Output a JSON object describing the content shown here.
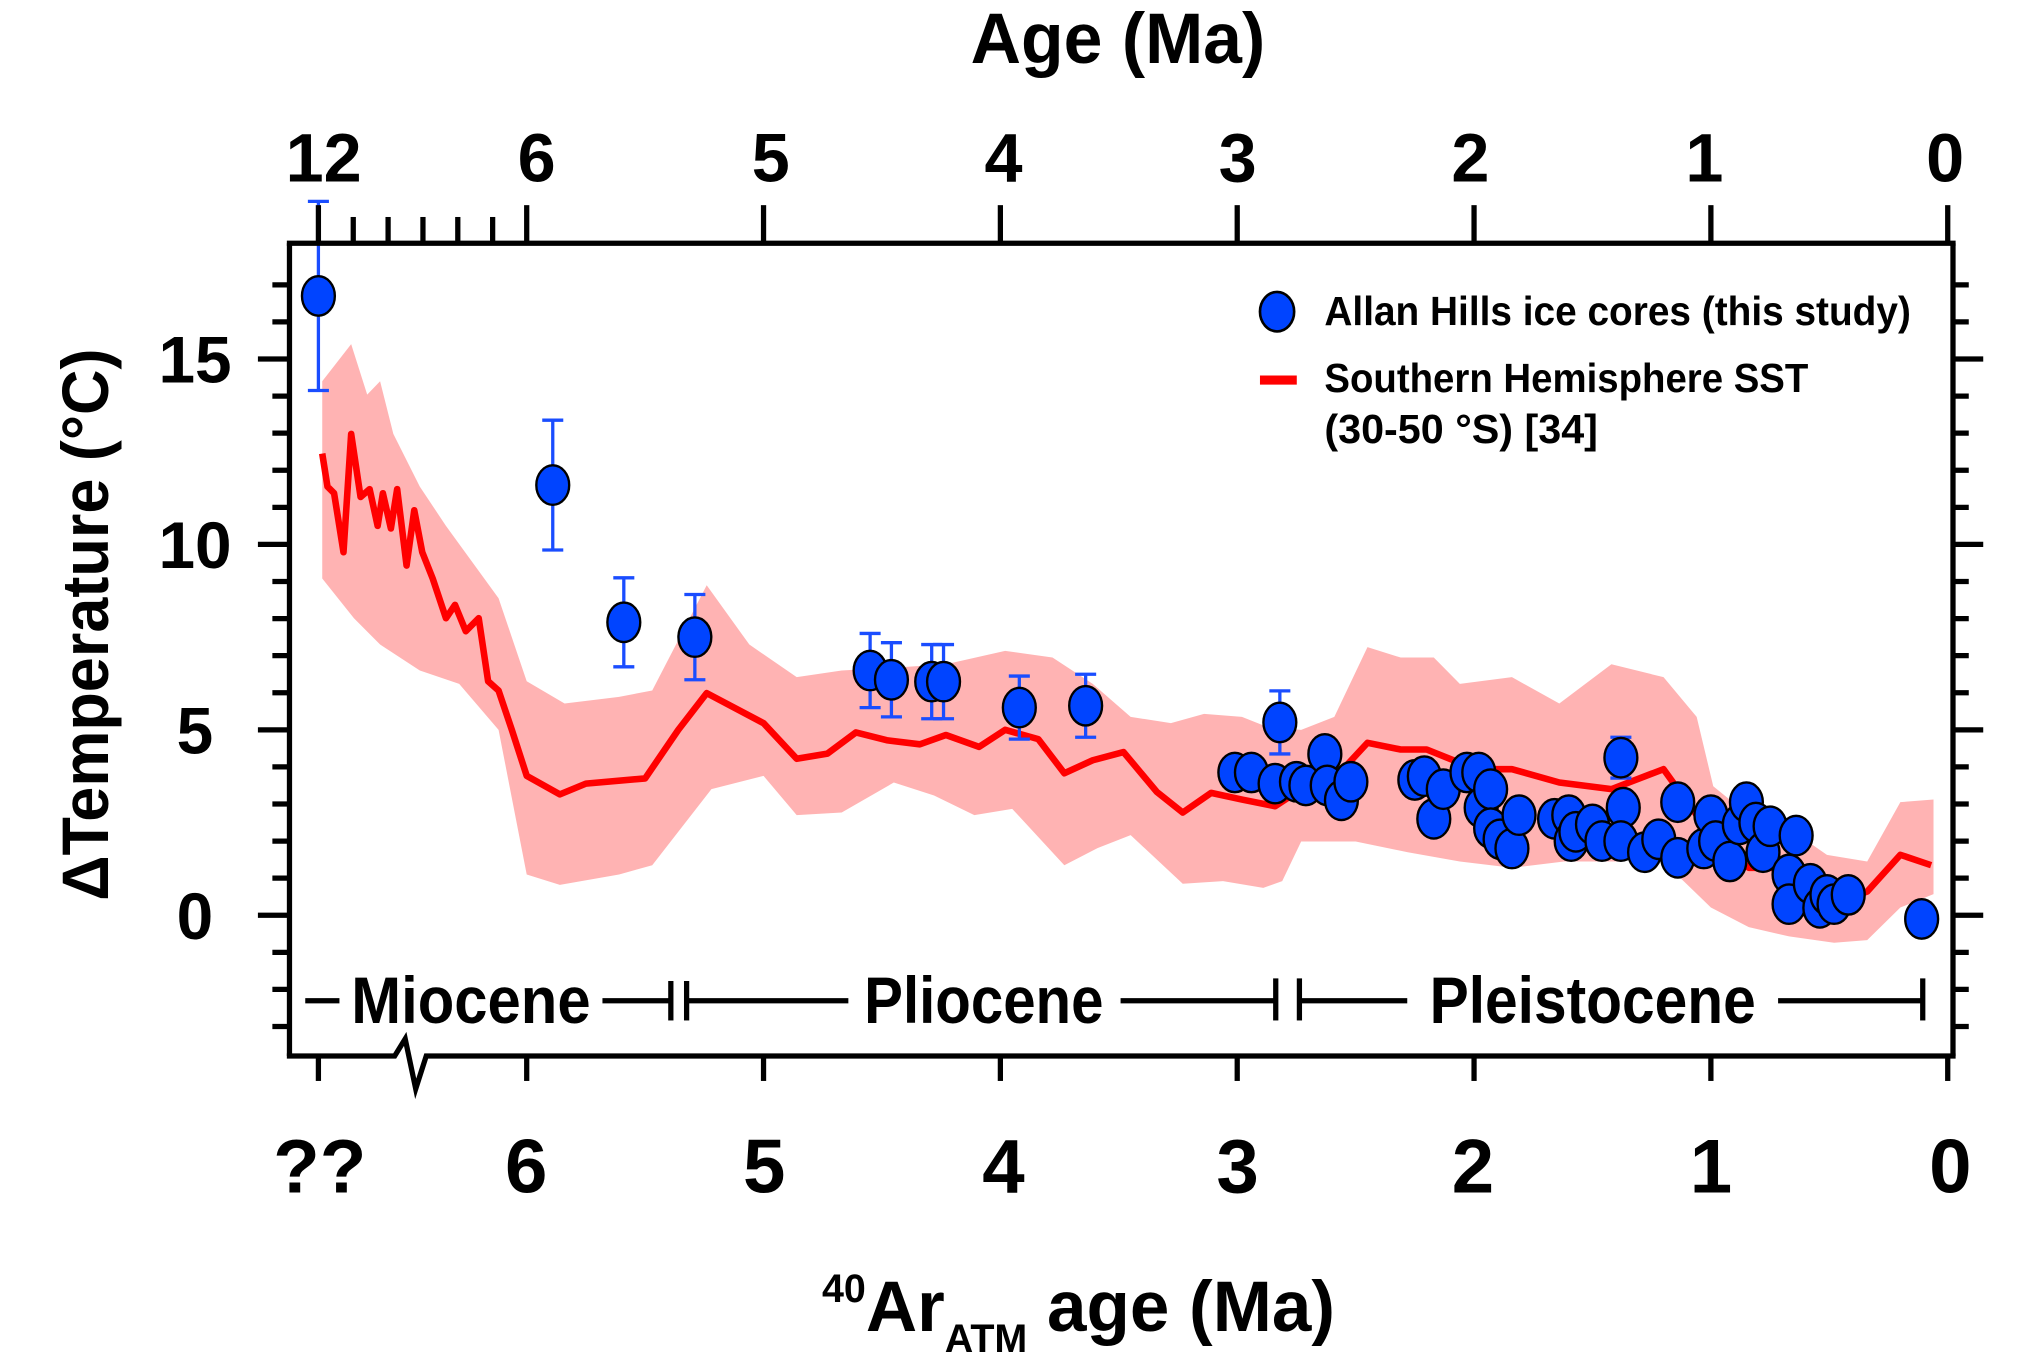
{
  "chart_data": {
    "type": "scatter",
    "top_axis": {
      "title": "Age (Ma)",
      "tick_labels": [
        "12",
        "6",
        "5",
        "4",
        "3",
        "2",
        "1",
        "0"
      ],
      "ticks": [
        12,
        6,
        5,
        4,
        3,
        2,
        1,
        0
      ],
      "minor_ticks": [
        11,
        10,
        9,
        8,
        7
      ]
    },
    "xlabel": {
      "superscript": "40",
      "main": "Ar",
      "subscript": "ATM",
      "rest": " age (Ma)"
    },
    "x_tick_labels": [
      "??",
      "6",
      "5",
      "4",
      "3",
      "2",
      "1",
      "0"
    ],
    "x_ticks": [
      12,
      6,
      5,
      4,
      3,
      2,
      1,
      0
    ],
    "x_axis_break": true,
    "ylabel": "ΔTemperature (°C)",
    "y_tick_labels": [
      "15",
      "10",
      "5",
      "0"
    ],
    "y_ticks": [
      15,
      10,
      5,
      0
    ],
    "ylim": [
      -3.8,
      18.1
    ],
    "xlim": [
      12.1,
      -0.05
    ],
    "grid": false,
    "legend": {
      "placement": "top-right",
      "entries": [
        {
          "label": "Allan Hills ice cores (this study)",
          "marker": "circle",
          "color": "#0044ff"
        },
        {
          "label": "Southern Hemisphere SST",
          "label2": "(30-50 °S) [34]",
          "marker": "line",
          "color": "#ff0000"
        }
      ]
    },
    "epochs": [
      {
        "name": "Miocene"
      },
      {
        "name": "Pliocene"
      },
      {
        "name": "Pleistocene"
      }
    ],
    "colors": {
      "points": "#0044ff",
      "errorbars": "#1a4dff",
      "sst_line": "#ff0000",
      "sst_band": "#ffb3b3"
    },
    "series": [
      {
        "name": "Allan Hills ice cores (this study)",
        "type": "scatter",
        "points": [
          {
            "x": 12.0,
            "y": 16.7,
            "err": 2.55
          },
          {
            "x": 5.89,
            "y": 11.6,
            "err": 1.75
          },
          {
            "x": 5.59,
            "y": 7.9,
            "err": 1.2
          },
          {
            "x": 5.29,
            "y": 7.5,
            "err": 1.15
          },
          {
            "x": 4.55,
            "y": 6.6,
            "err": 1.0
          },
          {
            "x": 4.46,
            "y": 6.35,
            "err": 1.0
          },
          {
            "x": 4.29,
            "y": 6.3,
            "err": 1.0
          },
          {
            "x": 4.24,
            "y": 6.3,
            "err": 1.0
          },
          {
            "x": 3.92,
            "y": 5.6,
            "err": 0.85
          },
          {
            "x": 3.64,
            "y": 5.65,
            "err": 0.85
          },
          {
            "x": 2.82,
            "y": 5.2,
            "err": 0.85
          },
          {
            "x": 3.01,
            "y": 3.85,
            "err": 0.4
          },
          {
            "x": 2.94,
            "y": 3.85,
            "err": 0.4
          },
          {
            "x": 2.84,
            "y": 3.55,
            "err": 0.4
          },
          {
            "x": 2.75,
            "y": 3.6,
            "err": 0.4
          },
          {
            "x": 2.71,
            "y": 3.5,
            "err": 0.4
          },
          {
            "x": 2.63,
            "y": 4.35,
            "err": 0.4
          },
          {
            "x": 2.62,
            "y": 3.5,
            "err": 0.4
          },
          {
            "x": 2.56,
            "y": 3.1,
            "err": 0.4
          },
          {
            "x": 2.52,
            "y": 3.6,
            "err": 0.4
          },
          {
            "x": 2.25,
            "y": 3.65,
            "err": 0.4
          },
          {
            "x": 2.21,
            "y": 3.75,
            "err": 0.4
          },
          {
            "x": 2.17,
            "y": 2.6,
            "err": 0
          },
          {
            "x": 2.13,
            "y": 3.4,
            "err": 0
          },
          {
            "x": 2.03,
            "y": 3.85,
            "err": 0.4
          },
          {
            "x": 1.98,
            "y": 3.85,
            "err": 0.4
          },
          {
            "x": 1.97,
            "y": 2.9,
            "err": 0
          },
          {
            "x": 1.93,
            "y": 3.4,
            "err": 0
          },
          {
            "x": 1.93,
            "y": 2.35,
            "err": 0
          },
          {
            "x": 1.89,
            "y": 2.05,
            "err": 0
          },
          {
            "x": 1.84,
            "y": 1.8,
            "err": 0
          },
          {
            "x": 1.81,
            "y": 2.7,
            "err": 0
          },
          {
            "x": 1.66,
            "y": 2.6,
            "err": 0
          },
          {
            "x": 1.6,
            "y": 2.7,
            "err": 0
          },
          {
            "x": 1.59,
            "y": 2.0,
            "err": 0
          },
          {
            "x": 1.57,
            "y": 2.25,
            "err": 0
          },
          {
            "x": 1.5,
            "y": 2.45,
            "err": 0
          },
          {
            "x": 1.46,
            "y": 2.0,
            "err": 0
          },
          {
            "x": 1.38,
            "y": 4.25,
            "err": 0.55
          },
          {
            "x": 1.37,
            "y": 2.9,
            "err": 0
          },
          {
            "x": 1.38,
            "y": 2.0,
            "err": 0
          },
          {
            "x": 1.28,
            "y": 1.7,
            "err": 0
          },
          {
            "x": 1.22,
            "y": 2.05,
            "err": 0
          },
          {
            "x": 1.14,
            "y": 3.05,
            "err": 0.3
          },
          {
            "x": 1.14,
            "y": 1.55,
            "err": 0
          },
          {
            "x": 1.03,
            "y": 1.8,
            "err": 0
          },
          {
            "x": 1.0,
            "y": 2.7,
            "err": 0
          },
          {
            "x": 0.98,
            "y": 2.0,
            "err": 0
          },
          {
            "x": 0.92,
            "y": 1.45,
            "err": 0
          },
          {
            "x": 0.88,
            "y": 2.45,
            "err": 0
          },
          {
            "x": 0.85,
            "y": 3.05,
            "err": 0.3
          },
          {
            "x": 0.81,
            "y": 2.5,
            "err": 0
          },
          {
            "x": 0.78,
            "y": 1.7,
            "err": 0
          },
          {
            "x": 0.75,
            "y": 2.4,
            "err": 0
          },
          {
            "x": 0.64,
            "y": 2.15,
            "err": 0
          },
          {
            "x": 0.67,
            "y": 1.1,
            "err": 0
          },
          {
            "x": 0.67,
            "y": 0.3,
            "err": 0
          },
          {
            "x": 0.58,
            "y": 0.85,
            "err": 0
          },
          {
            "x": 0.54,
            "y": 0.2,
            "err": 0
          },
          {
            "x": 0.51,
            "y": 0.55,
            "err": 0
          },
          {
            "x": 0.48,
            "y": 0.3,
            "err": 0
          },
          {
            "x": 0.42,
            "y": 0.55,
            "err": 0
          },
          {
            "x": 0.11,
            "y": -0.1,
            "err": 0
          }
        ]
      },
      {
        "name": "Southern Hemisphere SST (30-50 °S) [34]",
        "type": "line",
        "points": [
          [
            11.89,
            12.45
          ],
          [
            11.74,
            11.56
          ],
          [
            11.55,
            11.38
          ],
          [
            11.28,
            9.79
          ],
          [
            11.06,
            12.98
          ],
          [
            10.79,
            11.28
          ],
          [
            10.53,
            11.49
          ],
          [
            10.3,
            10.5
          ],
          [
            10.15,
            11.38
          ],
          [
            9.92,
            10.43
          ],
          [
            9.74,
            11.49
          ],
          [
            9.47,
            9.43
          ],
          [
            9.25,
            10.92
          ],
          [
            9.02,
            9.79
          ],
          [
            8.72,
            9.08
          ],
          [
            8.34,
            8.01
          ],
          [
            8.08,
            8.37
          ],
          [
            7.77,
            7.66
          ],
          [
            7.4,
            8.01
          ],
          [
            7.13,
            6.31
          ],
          [
            6.83,
            6.06
          ],
          [
            6.45,
            5.0
          ],
          [
            6.0,
            3.76
          ],
          [
            5.86,
            3.26
          ],
          [
            5.75,
            3.55
          ],
          [
            5.5,
            3.69
          ],
          [
            5.36,
            5.0
          ],
          [
            5.24,
            5.99
          ],
          [
            5.0,
            5.18
          ],
          [
            4.86,
            4.22
          ],
          [
            4.73,
            4.36
          ],
          [
            4.61,
            4.93
          ],
          [
            4.48,
            4.72
          ],
          [
            4.34,
            4.61
          ],
          [
            4.23,
            4.86
          ],
          [
            4.09,
            4.54
          ],
          [
            3.98,
            5.0
          ],
          [
            3.84,
            4.75
          ],
          [
            3.73,
            3.83
          ],
          [
            3.61,
            4.18
          ],
          [
            3.48,
            4.4
          ],
          [
            3.34,
            3.33
          ],
          [
            3.23,
            2.77
          ],
          [
            3.11,
            3.3
          ],
          [
            2.98,
            3.12
          ],
          [
            2.84,
            2.94
          ],
          [
            2.73,
            3.4
          ],
          [
            2.62,
            3.48
          ],
          [
            2.45,
            4.65
          ],
          [
            2.31,
            4.47
          ],
          [
            2.2,
            4.47
          ],
          [
            2.06,
            4.11
          ],
          [
            1.98,
            3.94
          ],
          [
            1.84,
            3.94
          ],
          [
            1.64,
            3.58
          ],
          [
            1.42,
            3.4
          ],
          [
            1.2,
            3.94
          ],
          [
            1.06,
            2.7
          ],
          [
            0.98,
            1.99
          ],
          [
            0.84,
            1.28
          ],
          [
            0.7,
            1.28
          ],
          [
            0.56,
            0.92
          ],
          [
            0.45,
            0.39
          ],
          [
            0.34,
            0.64
          ],
          [
            0.2,
            1.63
          ],
          [
            0.07,
            1.35
          ]
        ],
        "band_upper": [
          [
            11.89,
            14.4
          ],
          [
            11.06,
            15.4
          ],
          [
            10.6,
            14.04
          ],
          [
            10.23,
            14.4
          ],
          [
            9.85,
            12.98
          ],
          [
            9.09,
            11.56
          ],
          [
            8.34,
            10.5
          ],
          [
            6.83,
            8.55
          ],
          [
            6.0,
            6.31
          ],
          [
            5.84,
            5.71
          ],
          [
            5.61,
            5.89
          ],
          [
            5.47,
            6.06
          ],
          [
            5.24,
            8.9
          ],
          [
            5.06,
            7.3
          ],
          [
            4.86,
            6.42
          ],
          [
            4.67,
            6.6
          ],
          [
            4.39,
            6.7
          ],
          [
            4.23,
            6.77
          ],
          [
            3.98,
            7.13
          ],
          [
            3.78,
            6.95
          ],
          [
            3.61,
            6.24
          ],
          [
            3.45,
            5.35
          ],
          [
            3.28,
            5.18
          ],
          [
            3.14,
            5.43
          ],
          [
            2.98,
            5.35
          ],
          [
            2.87,
            5.07
          ],
          [
            2.73,
            5.0
          ],
          [
            2.59,
            5.35
          ],
          [
            2.45,
            7.23
          ],
          [
            2.31,
            6.95
          ],
          [
            2.17,
            6.95
          ],
          [
            2.06,
            6.24
          ],
          [
            1.84,
            6.42
          ],
          [
            1.64,
            5.71
          ],
          [
            1.42,
            6.77
          ],
          [
            1.2,
            6.42
          ],
          [
            1.06,
            5.35
          ],
          [
            0.99,
            3.48
          ],
          [
            0.84,
            2.7
          ],
          [
            0.67,
            2.34
          ],
          [
            0.51,
            1.63
          ],
          [
            0.34,
            1.45
          ],
          [
            0.2,
            3.05
          ],
          [
            0.06,
            3.12
          ]
        ],
        "band_lower": [
          [
            11.89,
            9.08
          ],
          [
            10.98,
            8.01
          ],
          [
            10.23,
            7.3
          ],
          [
            9.09,
            6.6
          ],
          [
            7.96,
            6.24
          ],
          [
            6.83,
            5.0
          ],
          [
            6.0,
            1.1
          ],
          [
            5.86,
            0.82
          ],
          [
            5.61,
            1.1
          ],
          [
            5.47,
            1.35
          ],
          [
            5.22,
            3.4
          ],
          [
            5.0,
            3.76
          ],
          [
            4.86,
            2.7
          ],
          [
            4.67,
            2.77
          ],
          [
            4.45,
            3.58
          ],
          [
            4.28,
            3.23
          ],
          [
            4.11,
            2.7
          ],
          [
            3.95,
            2.87
          ],
          [
            3.73,
            1.35
          ],
          [
            3.59,
            1.81
          ],
          [
            3.45,
            2.16
          ],
          [
            3.23,
            0.85
          ],
          [
            3.06,
            0.92
          ],
          [
            2.89,
            0.74
          ],
          [
            2.81,
            0.92
          ],
          [
            2.73,
            1.99
          ],
          [
            2.5,
            1.99
          ],
          [
            2.28,
            1.7
          ],
          [
            2.06,
            1.45
          ],
          [
            1.84,
            1.28
          ],
          [
            1.62,
            1.45
          ],
          [
            1.39,
            1.45
          ],
          [
            1.23,
            1.63
          ],
          [
            1.0,
            0.21
          ],
          [
            0.84,
            -0.32
          ],
          [
            0.67,
            -0.57
          ],
          [
            0.48,
            -0.74
          ],
          [
            0.34,
            -0.67
          ],
          [
            0.2,
            0.21
          ],
          [
            0.06,
            0.57
          ]
        ]
      }
    ]
  }
}
